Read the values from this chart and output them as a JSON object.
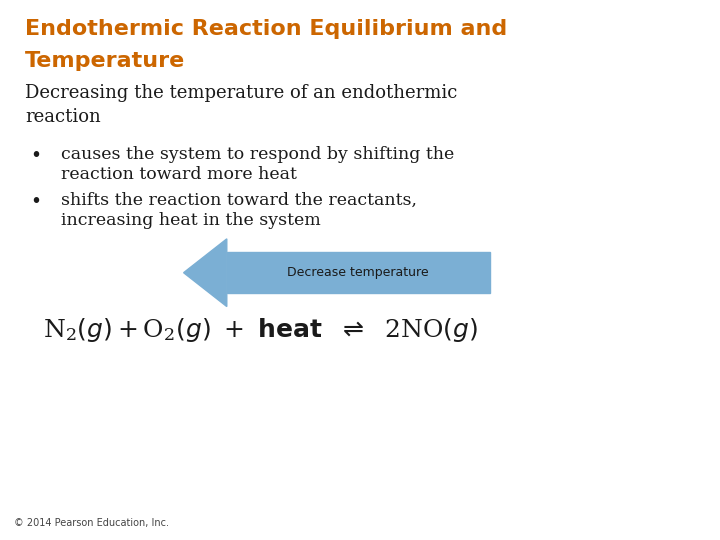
{
  "title_line1": "Endothermic Reaction Equilibrium and",
  "title_line2": "Temperature",
  "title_color": "#CC6600",
  "title_fontsize": 16,
  "subtitle_line1": "Decreasing the temperature of an endothermic",
  "subtitle_line2": "reaction",
  "subtitle_fontsize": 13,
  "bullet1_line1": "causes the system to respond by shifting the",
  "bullet1_line2": "reaction toward more heat",
  "bullet2_line1": "shifts the reaction toward the reactants,",
  "bullet2_line2": "increasing heat in the system",
  "bullet_fontsize": 12.5,
  "arrow_label": "Decrease temperature",
  "arrow_color": "#7BAFD4",
  "arrow_label_fontsize": 9,
  "equation_fontsize": 18,
  "footer": "© 2014 Pearson Education, Inc.",
  "footer_fontsize": 7,
  "bg_color": "#FFFFFF",
  "text_color": "#1a1a1a"
}
